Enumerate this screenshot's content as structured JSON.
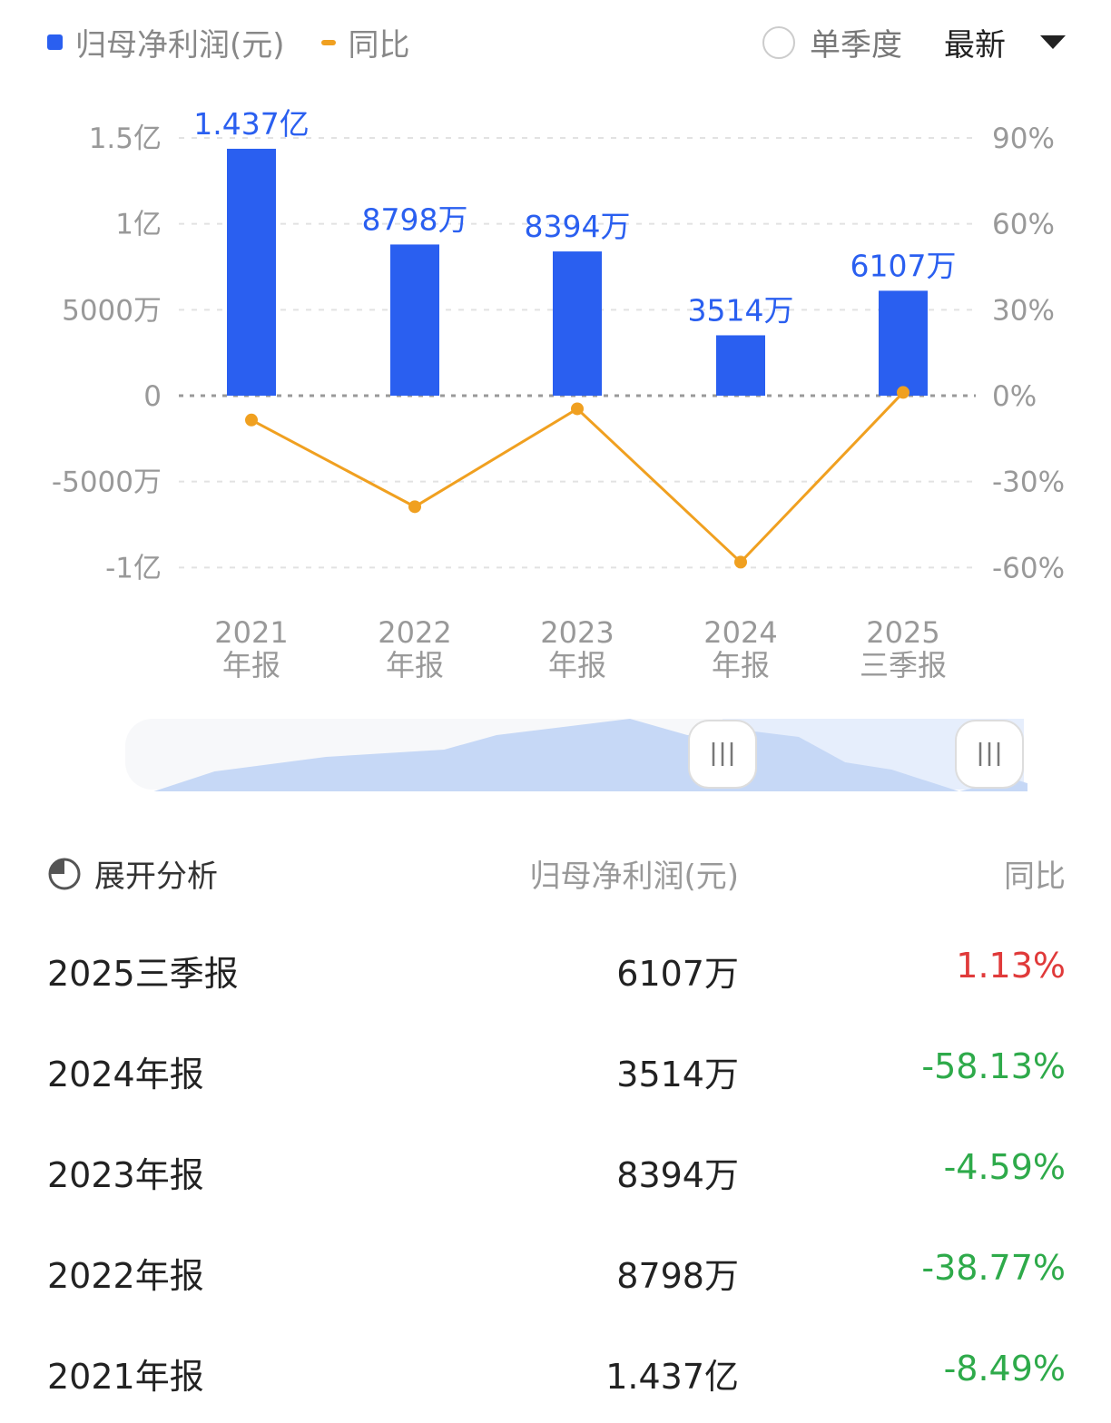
{
  "legend": {
    "bar_label": "归母净利润(元)",
    "line_label": "同比"
  },
  "controls": {
    "single_quarter": "单季度",
    "sort": "最新"
  },
  "chart_data": {
    "type": "bar+line",
    "categories": [
      [
        "2021",
        "年报"
      ],
      [
        "2022",
        "年报"
      ],
      [
        "2023",
        "年报"
      ],
      [
        "2024",
        "年报"
      ],
      [
        "2025",
        "三季报"
      ]
    ],
    "series": [
      {
        "name": "归母净利润(元)",
        "type": "bar",
        "color": "#2a5ff0",
        "values": [
          143700000,
          87980000,
          83940000,
          35140000,
          61070000
        ],
        "labels": [
          "1.437亿",
          "8798万",
          "8394万",
          "3514万",
          "6107万"
        ]
      },
      {
        "name": "同比",
        "type": "line",
        "color": "#f0a020",
        "axis": "right",
        "values": [
          -8.49,
          -38.77,
          -4.59,
          -58.13,
          1.13
        ]
      }
    ],
    "left_axis": {
      "ylim": [
        -100000000,
        150000000
      ],
      "ticks": [
        150000000,
        100000000,
        50000000,
        0,
        -50000000,
        -100000000
      ],
      "tick_labels": [
        "1.5亿",
        "1亿",
        "5000万",
        "0",
        "-5000万",
        "-1亿"
      ]
    },
    "right_axis": {
      "ylim": [
        -60,
        90
      ],
      "tick_labels": [
        "90%",
        "60%",
        "30%",
        "0%",
        "-30%",
        "-60%"
      ]
    },
    "grid": true
  },
  "table": {
    "header": {
      "analysis": "展开分析",
      "value": "归母净利润(元)",
      "yoy": "同比"
    },
    "rows": [
      {
        "period": "2025三季报",
        "value": "6107万",
        "yoy": "1.13%",
        "color": "#e03a3a"
      },
      {
        "period": "2024年报",
        "value": "3514万",
        "yoy": "-58.13%",
        "color": "#2eaa4a"
      },
      {
        "period": "2023年报",
        "value": "8394万",
        "yoy": "-4.59%",
        "color": "#2eaa4a"
      },
      {
        "period": "2022年报",
        "value": "8798万",
        "yoy": "-38.77%",
        "color": "#2eaa4a"
      },
      {
        "period": "2021年报",
        "value": "1.437亿",
        "yoy": "-8.49%",
        "color": "#2eaa4a"
      }
    ]
  }
}
